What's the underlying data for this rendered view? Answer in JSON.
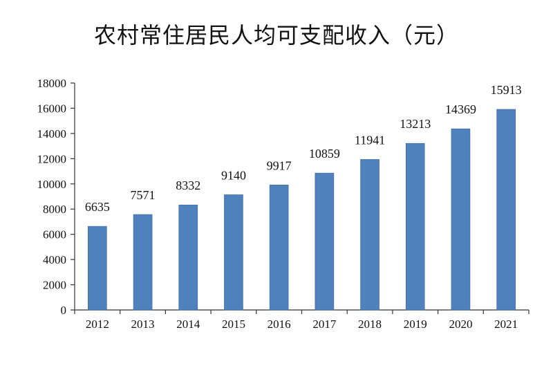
{
  "chart_data": {
    "type": "bar",
    "title": "农村常住居民人均可支配收入（元）",
    "categories": [
      "2012",
      "2013",
      "2014",
      "2015",
      "2016",
      "2017",
      "2018",
      "2019",
      "2020",
      "2021"
    ],
    "values": [
      6635,
      7571,
      8332,
      9140,
      9917,
      10859,
      11941,
      13213,
      14369,
      15913
    ],
    "ylim": [
      0,
      18000
    ],
    "yticks": [
      0,
      2000,
      4000,
      6000,
      8000,
      10000,
      12000,
      14000,
      16000,
      18000
    ],
    "xlabel": "",
    "ylabel": "",
    "grid": false,
    "bar_color": "#4F81BD"
  }
}
